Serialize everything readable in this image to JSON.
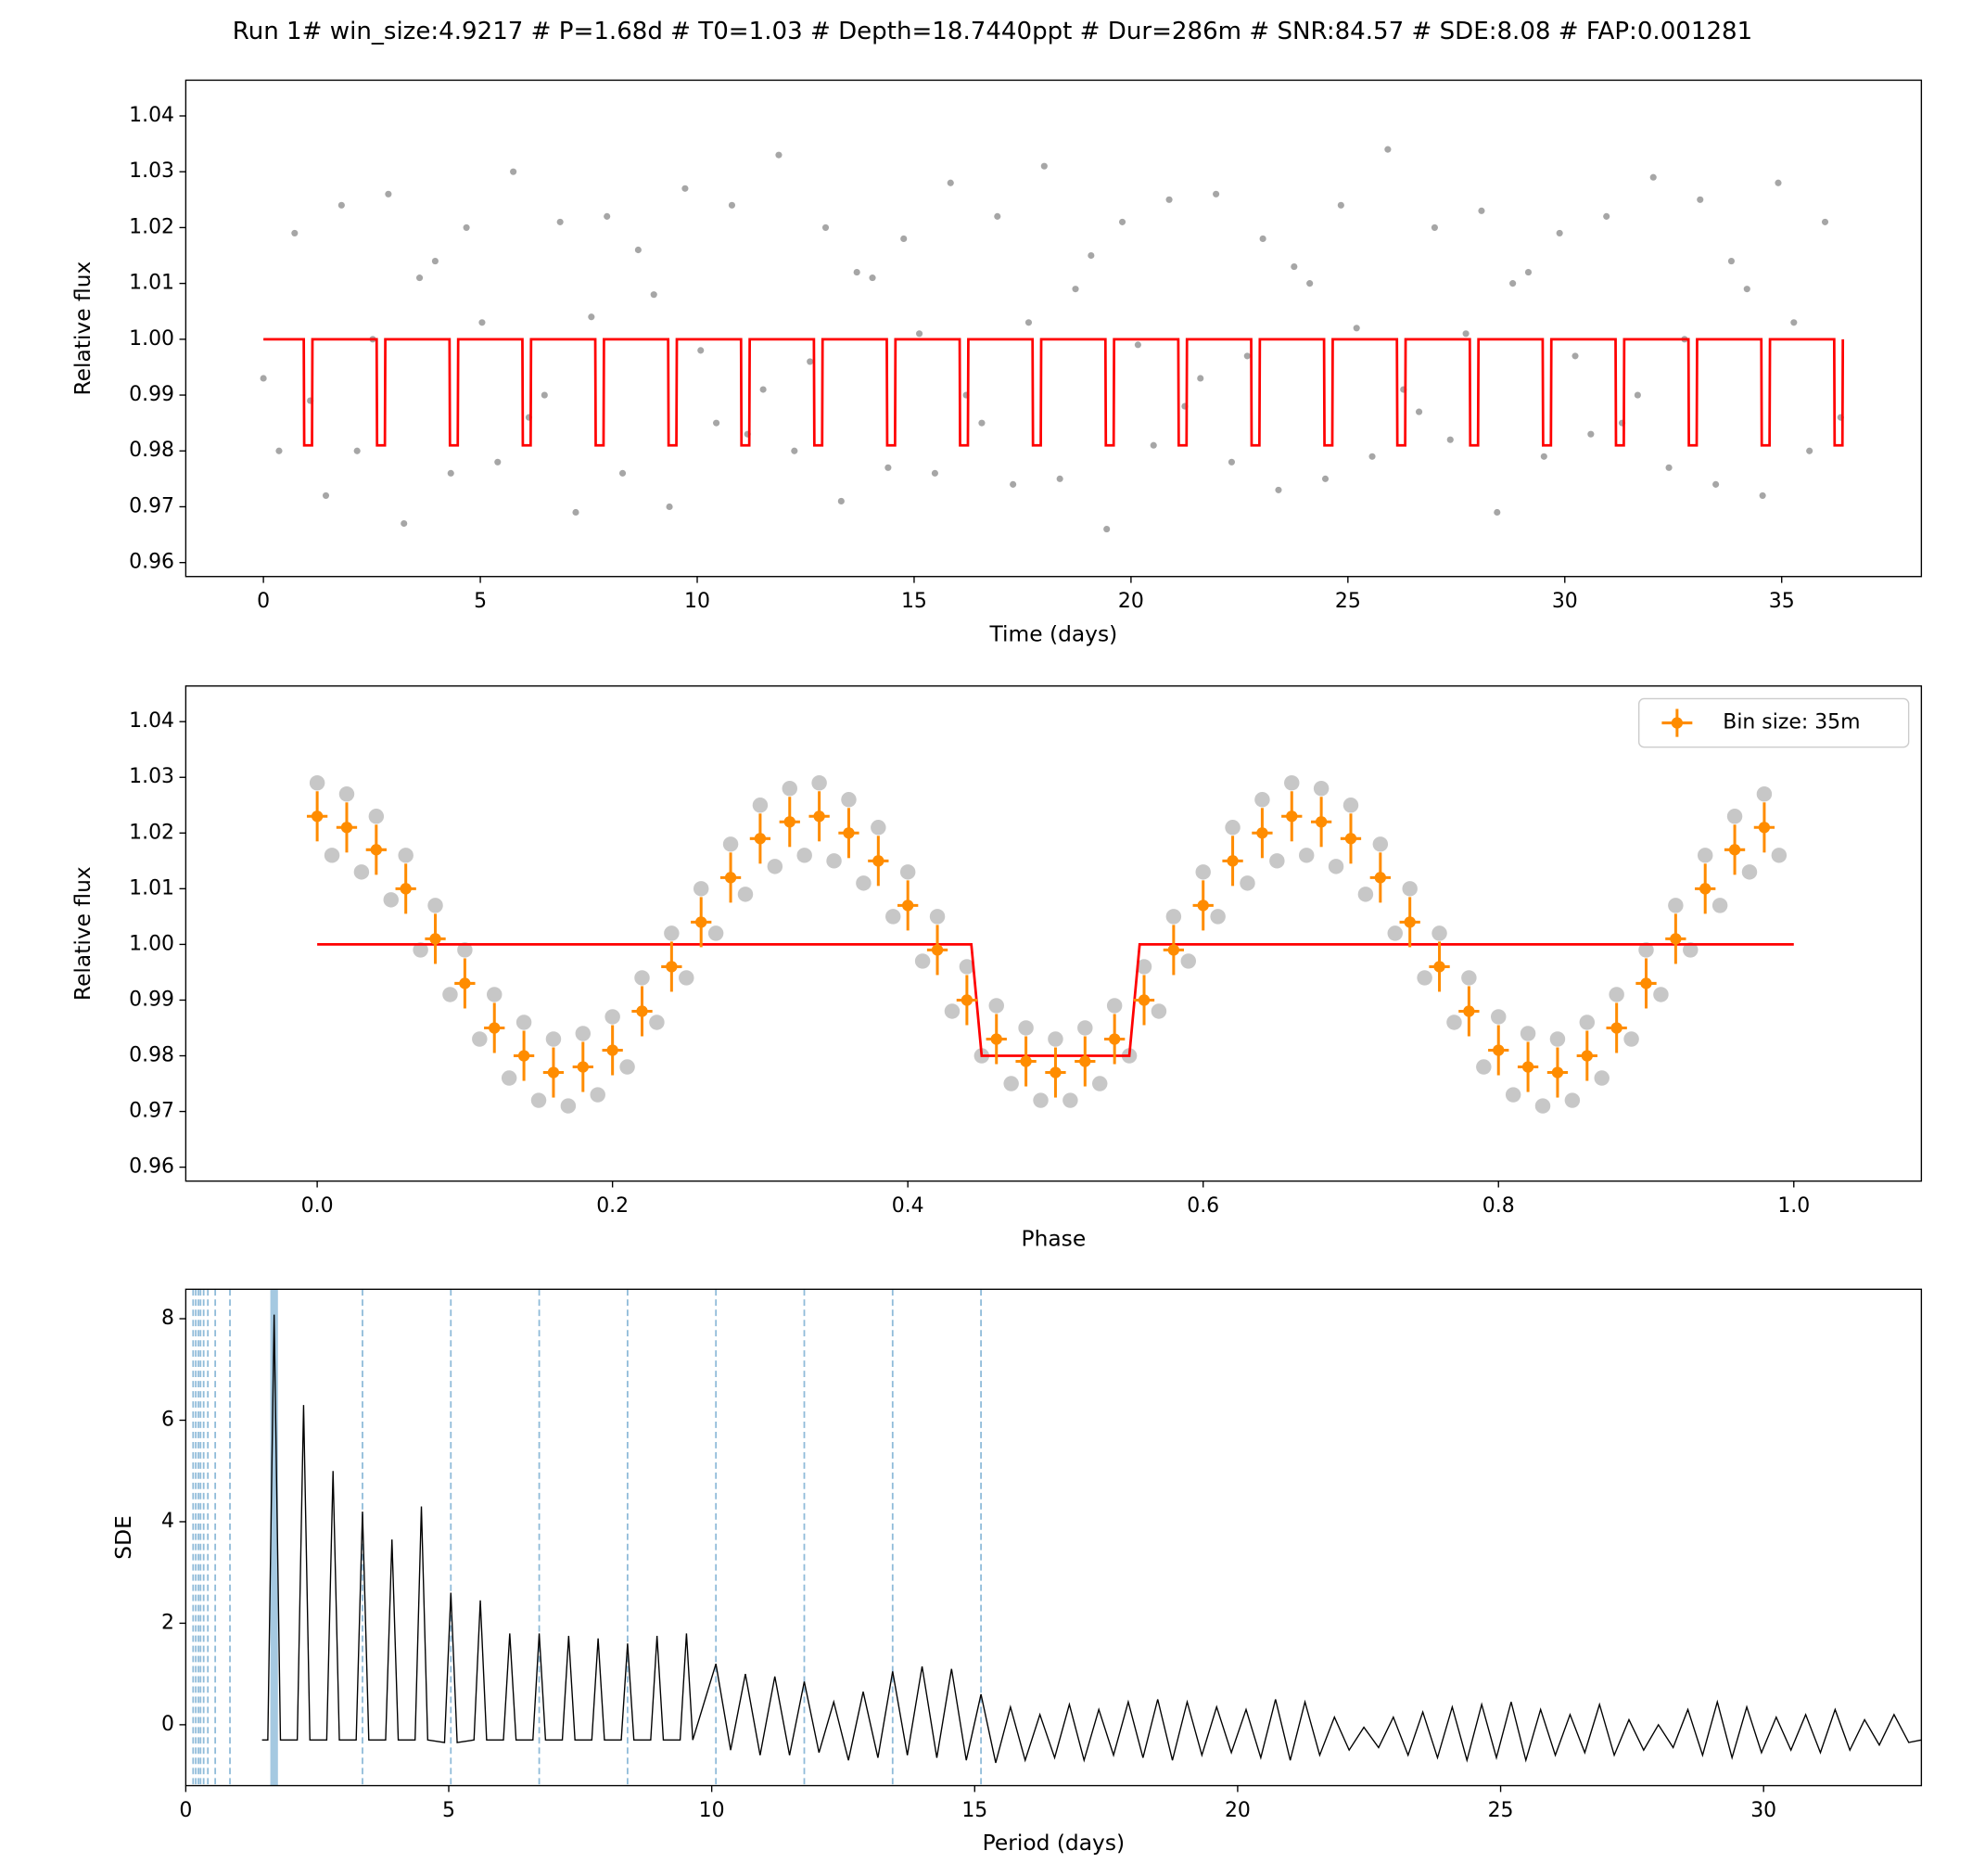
{
  "chart_data": [
    {
      "type": "scatter",
      "title": "Run 1# win_size:4.9217 # P=1.68d # T0=1.03 # Depth=18.7440ppt # Dur=286m # SNR:84.57 # SDE:8.08 # FAP:0.001281",
      "xlabel": "Time (days)",
      "ylabel": "Relative flux",
      "xlim": [
        -1.79,
        38.22
      ],
      "ylim": [
        0.9575,
        1.0464
      ],
      "xticks": [
        0,
        5,
        10,
        15,
        20,
        25,
        30,
        35
      ],
      "yticks": [
        0.96,
        0.97,
        0.98,
        0.99,
        {
          "value": 1,
          "label": "1.00"
        },
        1.01,
        1.02,
        1.03,
        1.04
      ],
      "points": [
        {
          "color": "#000000",
          "x": [
            0,
            0.36,
            0.72,
            1.08,
            1.44,
            1.8,
            2.16,
            2.52,
            2.88,
            3.24,
            3.6,
            3.96,
            4.32,
            4.68,
            5.04,
            5.4,
            5.76,
            6.12,
            6.48,
            6.84,
            7.2,
            7.56,
            7.92,
            8.28,
            8.64,
            9,
            9.36,
            9.72,
            10.08,
            10.44,
            10.8,
            11.16,
            11.52,
            11.88,
            12.24,
            12.6,
            12.96,
            13.32,
            13.68,
            14.04,
            14.4,
            14.76,
            15.12,
            15.48,
            15.84,
            16.2,
            16.56,
            16.92,
            17.28,
            17.64,
            18,
            18.36,
            18.72,
            19.08,
            19.44,
            19.8,
            20.16,
            20.52,
            20.88,
            21.24,
            21.6,
            21.96,
            22.32,
            22.68,
            23.04,
            23.4,
            23.76,
            24.12,
            24.48,
            24.84,
            25.2,
            25.56,
            25.92,
            26.28,
            26.64,
            27,
            27.36,
            27.72,
            28.08,
            28.44,
            28.8,
            29.16,
            29.52,
            29.88,
            30.24,
            30.6,
            30.96,
            31.32,
            31.68,
            32.04,
            32.4,
            32.76,
            33.12,
            33.48,
            33.84,
            34.2,
            34.56,
            34.92,
            35.28,
            35.64,
            36,
            36.36
          ],
          "values": [
            0.993,
            0.98,
            1.019,
            0.989,
            0.972,
            1.024,
            0.98,
            1.0,
            1.026,
            0.967,
            1.011,
            1.014,
            0.976,
            1.02,
            1.003,
            0.978,
            1.03,
            0.986,
            0.99,
            1.021,
            0.969,
            1.004,
            1.022,
            0.976,
            1.016,
            1.008,
            0.97,
            1.027,
            0.998,
            0.985,
            1.024,
            0.983,
            0.991,
            1.033,
            0.98,
            0.996,
            1.02,
            0.971,
            1.012,
            1.011,
            0.977,
            1.018,
            1.001,
            0.976,
            1.028,
            0.99,
            0.985,
            1.022,
            0.974,
            1.003,
            1.031,
            0.975,
            1.009,
            1.015,
            0.966,
            1.021,
            0.999,
            0.981,
            1.025,
            0.988,
            0.993,
            1.026,
            0.978,
            0.997,
            1.018,
            0.973,
            1.013,
            1.01,
            0.975,
            1.024,
            1.002,
            0.979,
            1.034,
            0.991,
            0.987,
            1.02,
            0.982,
            1.001,
            1.023,
            0.969,
            1.01,
            1.012,
            0.979,
            1.019,
            0.997,
            0.983,
            1.022,
            0.985,
            0.99,
            1.029,
            0.977,
            1.0,
            1.025,
            0.974,
            1.014,
            1.009,
            0.972,
            1.028,
            1.003,
            0.98,
            1.021,
            0.986
          ]
        }
      ],
      "model": {
        "color": "#ff0000",
        "x": [
          0,
          0.93,
          0.94,
          1.12,
          1.13,
          2.61,
          2.62,
          2.8,
          2.81,
          4.29,
          4.3,
          4.48,
          4.49,
          5.97,
          5.98,
          6.16,
          6.17,
          7.65,
          7.66,
          7.84,
          7.85,
          9.33,
          9.34,
          9.52,
          9.53,
          11.01,
          11.02,
          11.2,
          11.21,
          12.69,
          12.7,
          12.88,
          12.89,
          14.37,
          14.38,
          14.56,
          14.57,
          16.05,
          16.06,
          16.24,
          16.25,
          17.73,
          17.74,
          17.92,
          17.93,
          19.41,
          19.42,
          19.6,
          19.61,
          21.09,
          21.1,
          21.28,
          21.29,
          22.77,
          22.78,
          22.96,
          22.97,
          24.45,
          24.46,
          24.64,
          24.65,
          26.13,
          26.14,
          26.32,
          26.33,
          27.81,
          27.82,
          28.0,
          28.01,
          29.49,
          29.5,
          29.68,
          29.69,
          31.17,
          31.18,
          31.36,
          31.37,
          32.85,
          32.86,
          33.04,
          33.05,
          34.53,
          34.54,
          34.72,
          34.73,
          36.21,
          36.22,
          36.4,
          36.41
        ],
        "values": [
          1,
          1,
          0.981,
          0.981,
          1,
          1,
          0.981,
          0.981,
          1,
          1,
          0.981,
          0.981,
          1,
          1,
          0.981,
          0.981,
          1,
          1,
          0.981,
          0.981,
          1,
          1,
          0.981,
          0.981,
          1,
          1,
          0.981,
          0.981,
          1,
          1,
          0.981,
          0.981,
          1,
          1,
          0.981,
          0.981,
          1,
          1,
          0.981,
          0.981,
          1,
          1,
          0.981,
          0.981,
          1,
          1,
          0.981,
          0.981,
          1,
          1,
          0.981,
          0.981,
          1,
          1,
          0.981,
          0.981,
          1,
          1,
          0.981,
          0.981,
          1,
          1,
          0.981,
          0.981,
          1,
          1,
          0.981,
          0.981,
          1,
          1,
          0.981,
          0.981,
          1,
          1,
          0.981,
          0.981,
          1,
          1,
          0.981,
          0.981,
          1,
          1,
          0.981,
          0.981,
          1,
          1,
          0.981,
          0.981,
          1
        ]
      }
    },
    {
      "type": "scatter",
      "xlabel": "Phase",
      "ylabel": "Relative flux",
      "xlim": [
        -0.089,
        1.0864
      ],
      "ylim": [
        0.9575,
        1.0464
      ],
      "xticks": [
        {
          "value": 0,
          "label": "0.0"
        },
        0.2,
        0.4,
        0.6,
        0.8,
        {
          "value": 1,
          "label": "1.0"
        }
      ],
      "yticks": [
        0.96,
        0.97,
        0.98,
        0.99,
        {
          "value": 1,
          "label": "1.00"
        },
        1.01,
        1.02,
        1.03,
        1.04
      ],
      "points": [
        {
          "color": "#000000",
          "x": [
            0,
            0.02,
            0.04,
            0.06,
            0.08,
            0.1,
            0.12,
            0.14,
            0.16,
            0.18,
            0.2,
            0.22,
            0.24,
            0.26,
            0.28,
            0.3,
            0.32,
            0.34,
            0.36,
            0.38,
            0.4,
            0.42,
            0.44,
            0.46,
            0.48,
            0.5,
            0.52,
            0.54,
            0.56,
            0.58,
            0.6,
            0.62,
            0.64,
            0.66,
            0.68,
            0.7,
            0.72,
            0.74,
            0.76,
            0.78,
            0.8,
            0.82,
            0.84,
            0.86,
            0.88,
            0.9,
            0.92,
            0.94,
            0.96,
            0.98
          ],
          "values": [
            1.029,
            1.027,
            1.023,
            1.016,
            1.007,
            0.999,
            0.991,
            0.986,
            0.983,
            0.984,
            0.987,
            0.994,
            1.002,
            1.01,
            1.018,
            1.025,
            1.028,
            1.029,
            1.026,
            1.021,
            1.013,
            1.005,
            0.996,
            0.989,
            0.985,
            0.983,
            0.985,
            0.989,
            0.996,
            1.005,
            1.013,
            1.021,
            1.026,
            1.029,
            1.028,
            1.025,
            1.018,
            1.01,
            1.002,
            0.994,
            0.987,
            0.984,
            0.983,
            0.986,
            0.991,
            0.999,
            1.007,
            1.016,
            1.023,
            1.027
          ]
        },
        {
          "color": "#000000",
          "x": [
            0.01,
            0.03,
            0.05,
            0.07,
            0.09,
            0.11,
            0.13,
            0.15,
            0.17,
            0.19,
            0.21,
            0.23,
            0.25,
            0.27,
            0.29,
            0.31,
            0.33,
            0.35,
            0.37,
            0.39,
            0.41,
            0.43,
            0.45,
            0.47,
            0.49,
            0.51,
            0.53,
            0.55,
            0.57,
            0.59,
            0.61,
            0.63,
            0.65,
            0.67,
            0.69,
            0.71,
            0.73,
            0.75,
            0.77,
            0.79,
            0.81,
            0.83,
            0.85,
            0.87,
            0.89,
            0.91,
            0.93,
            0.95,
            0.97,
            0.99
          ],
          "values": [
            1.016,
            1.013,
            1.008,
            0.999,
            0.991,
            0.983,
            0.976,
            0.972,
            0.971,
            0.973,
            0.978,
            0.986,
            0.994,
            1.002,
            1.009,
            1.014,
            1.016,
            1.015,
            1.011,
            1.005,
            0.997,
            0.988,
            0.98,
            0.975,
            0.972,
            0.972,
            0.975,
            0.98,
            0.988,
            0.997,
            1.005,
            1.011,
            1.015,
            1.016,
            1.014,
            1.009,
            1.002,
            0.994,
            0.986,
            0.978,
            0.973,
            0.971,
            0.972,
            0.976,
            0.983,
            0.991,
            0.999,
            1.007,
            1.013,
            1.016
          ]
        }
      ],
      "model": {
        "color": "#ff0000",
        "x": [
          0,
          0.443,
          0.45,
          0.55,
          0.557,
          1
        ],
        "values": [
          1,
          1,
          0.98,
          0.98,
          1,
          1
        ]
      },
      "series": [
        {
          "name": "Bin size: 35m",
          "color": "#ff8c00",
          "xerr": 0.007,
          "yerr": 0.0045,
          "x": [
            0,
            0.02,
            0.04,
            0.06,
            0.08,
            0.1,
            0.12,
            0.14,
            0.16,
            0.18,
            0.2,
            0.22,
            0.24,
            0.26,
            0.28,
            0.3,
            0.32,
            0.34,
            0.36,
            0.38,
            0.4,
            0.42,
            0.44,
            0.46,
            0.48,
            0.5,
            0.52,
            0.54,
            0.56,
            0.58,
            0.6,
            0.62,
            0.64,
            0.66,
            0.68,
            0.7,
            0.72,
            0.74,
            0.76,
            0.78,
            0.8,
            0.82,
            0.84,
            0.86,
            0.88,
            0.9,
            0.92,
            0.94,
            0.96,
            0.98
          ],
          "values": [
            1.023,
            1.021,
            1.017,
            1.01,
            1.001,
            0.993,
            0.985,
            0.98,
            0.977,
            0.978,
            0.981,
            0.988,
            0.996,
            1.004,
            1.012,
            1.019,
            1.022,
            1.023,
            1.02,
            1.015,
            1.007,
            0.999,
            0.99,
            0.983,
            0.979,
            0.977,
            0.979,
            0.983,
            0.99,
            0.999,
            1.007,
            1.015,
            1.02,
            1.023,
            1.022,
            1.019,
            1.012,
            1.004,
            0.996,
            0.988,
            0.981,
            0.978,
            0.977,
            0.98,
            0.985,
            0.993,
            1.001,
            1.01,
            1.017,
            1.021
          ]
        }
      ],
      "legend": "upper right"
    },
    {
      "type": "line",
      "xlabel": "Period (days)",
      "ylabel": "SDE",
      "xlim": [
        0,
        33
      ],
      "ylim": [
        -1.2,
        8.58
      ],
      "xticks": [
        0,
        5,
        10,
        15,
        20,
        25,
        30
      ],
      "yticks": [
        0,
        2,
        4,
        6,
        8
      ],
      "period": 1.68,
      "harmonics": [
        0.14,
        0.19,
        0.24,
        0.28,
        0.34,
        0.42,
        0.56,
        0.84,
        3.36,
        5.04,
        6.72,
        8.4,
        10.08,
        11.76,
        13.44,
        15.12
      ],
      "harmonic_color": "#1f77b4",
      "line": {
        "color": "#000000",
        "x": [
          1.45,
          1.56,
          1.68,
          1.8,
          2.12,
          2.24,
          2.36,
          2.68,
          2.8,
          2.92,
          3.24,
          3.36,
          3.48,
          3.8,
          3.92,
          4.04,
          4.36,
          4.48,
          4.6,
          4.92,
          5.04,
          5.16,
          5.48,
          5.6,
          5.72,
          6.04,
          6.16,
          6.28,
          6.6,
          6.72,
          6.84,
          7.16,
          7.28,
          7.4,
          7.72,
          7.84,
          7.96,
          8.28,
          8.4,
          8.52,
          8.84,
          8.96,
          9.08,
          9.4,
          9.52,
          9.64,
          10.08,
          10.36,
          10.64,
          10.92,
          11.2,
          11.48,
          11.76,
          12.04,
          12.32,
          12.6,
          12.88,
          13.16,
          13.44,
          13.72,
          14,
          14.28,
          14.56,
          14.84,
          15.12,
          15.4,
          15.68,
          15.96,
          16.24,
          16.52,
          16.8,
          17.08,
          17.36,
          17.64,
          17.92,
          18.2,
          18.48,
          18.76,
          19.04,
          19.32,
          19.6,
          19.88,
          20.16,
          20.44,
          20.72,
          21,
          21.28,
          21.56,
          21.84,
          22.12,
          22.4,
          22.68,
          22.96,
          23.24,
          23.52,
          23.8,
          24.08,
          24.36,
          24.64,
          24.92,
          25.2,
          25.48,
          25.76,
          26.04,
          26.32,
          26.6,
          26.88,
          27.16,
          27.44,
          27.72,
          28,
          28.28,
          28.56,
          28.84,
          29.12,
          29.4,
          29.68,
          29.96,
          30.24,
          30.52,
          30.8,
          31.08,
          31.36,
          31.64,
          31.92,
          32.2,
          32.48,
          32.76,
          33
        ],
        "values": [
          -0.3,
          -0.3,
          8.08,
          -0.3,
          -0.3,
          6.3,
          -0.3,
          -0.3,
          5.0,
          -0.3,
          -0.3,
          4.2,
          -0.3,
          -0.3,
          3.65,
          -0.3,
          -0.3,
          4.3,
          -0.3,
          -0.35,
          2.6,
          -0.35,
          -0.3,
          2.45,
          -0.3,
          -0.3,
          1.8,
          -0.3,
          -0.3,
          1.8,
          -0.3,
          -0.3,
          1.75,
          -0.3,
          -0.3,
          1.7,
          -0.3,
          -0.3,
          1.6,
          -0.3,
          -0.3,
          1.75,
          -0.3,
          -0.3,
          1.8,
          -0.3,
          1.2,
          -0.5,
          1.0,
          -0.6,
          0.95,
          -0.6,
          0.85,
          -0.55,
          0.45,
          -0.7,
          0.65,
          -0.65,
          1.05,
          -0.6,
          1.15,
          -0.65,
          1.1,
          -0.7,
          0.6,
          -0.75,
          0.35,
          -0.7,
          0.2,
          -0.65,
          0.4,
          -0.7,
          0.3,
          -0.6,
          0.45,
          -0.65,
          0.5,
          -0.7,
          0.45,
          -0.6,
          0.35,
          -0.55,
          0.3,
          -0.65,
          0.5,
          -0.7,
          0.45,
          -0.6,
          0.15,
          -0.5,
          -0.05,
          -0.45,
          0.15,
          -0.6,
          0.25,
          -0.65,
          0.35,
          -0.7,
          0.4,
          -0.65,
          0.45,
          -0.7,
          0.3,
          -0.6,
          0.2,
          -0.55,
          0.4,
          -0.6,
          0.1,
          -0.5,
          0.0,
          -0.45,
          0.3,
          -0.6,
          0.45,
          -0.65,
          0.35,
          -0.55,
          0.15,
          -0.5,
          0.2,
          -0.55,
          0.3,
          -0.5,
          0.1,
          -0.4,
          0.2,
          -0.35,
          -0.3
        ]
      }
    }
  ]
}
